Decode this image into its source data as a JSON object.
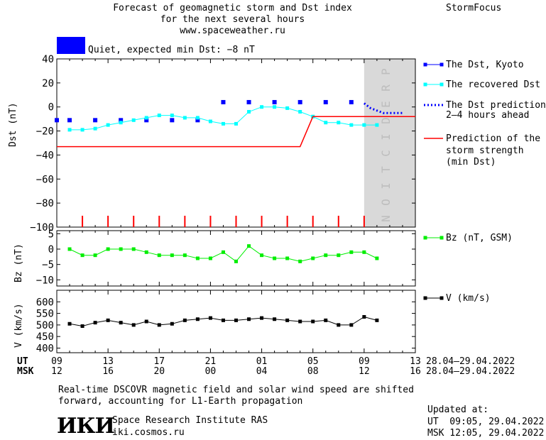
{
  "header": {
    "title_line1": "Forecast of geomagnetic storm and Dst index",
    "title_line2": "for the next several hours",
    "url": "www.spaceweather.ru",
    "brand": "StormFocus",
    "status_text": "Quiet, expected min Dst: −8 nT",
    "status_color": "#0000ff"
  },
  "legend": {
    "dst_kyoto": "The Dst, Kyoto",
    "dst_recovered": "The recovered Dst",
    "dst_prediction_1": "The Dst prediction",
    "dst_prediction_2": "2–4 hours ahead",
    "storm_1": "Prediction of the",
    "storm_2": "storm strength",
    "storm_3": "(min Dst)",
    "bz": "Bz (nT, GSM)",
    "v": "V (km/s)"
  },
  "axis": {
    "ut_label": "UT",
    "msk_label": "MSK",
    "ut_ticks": [
      "09",
      "13",
      "17",
      "21",
      "01",
      "05",
      "09",
      "13"
    ],
    "msk_ticks": [
      "12",
      "16",
      "20",
      "00",
      "04",
      "08",
      "12",
      "16"
    ],
    "ut_range": "28.04–29.04.2022",
    "msk_range": "28.04–29.04.2022"
  },
  "footer": {
    "note_line1": "Real-time DSCOVR magnetic field and solar wind speed are shifted",
    "note_line2": "forward, accounting for L1-Earth propagation",
    "logo_text": "ИКИ",
    "institute": "Space Research Institute RAS",
    "site": "iki.cosmos.ru",
    "updated_label": "Updated at:",
    "updated_ut": "UT  09:05, 29.04.2022",
    "updated_msk": "MSK 12:05, 29.04.2022"
  },
  "colors": {
    "kyoto": "#0000ff",
    "recovered": "#00ffff",
    "prediction": "#0000ff",
    "storm": "#ff0000",
    "bz": "#00ee00",
    "v": "#000000",
    "prediction_band": "#d9d9d9"
  },
  "chart_data": [
    {
      "type": "line",
      "ylabel": "Dst (nT)",
      "ylim": [
        -100,
        40
      ],
      "yticks": [
        40,
        20,
        0,
        -20,
        -40,
        -60,
        -80,
        -100
      ],
      "xlim": [
        0,
        28
      ],
      "prediction_band": [
        24,
        28
      ],
      "prediction_label": "PREDICTION",
      "series": [
        {
          "name": "The Dst, Kyoto",
          "style": "squares",
          "x": [
            0,
            1,
            3,
            5,
            7,
            9,
            11,
            13,
            15,
            17,
            19,
            21,
            23
          ],
          "y": [
            -11,
            -11,
            -11,
            -11,
            -11,
            -11,
            -11,
            4,
            4,
            4,
            4,
            4,
            4
          ]
        },
        {
          "name": "The recovered Dst",
          "style": "line-markers",
          "x": [
            1,
            2,
            3,
            4,
            5,
            6,
            7,
            8,
            9,
            10,
            11,
            12,
            13,
            14,
            15,
            16,
            17,
            18,
            19,
            20,
            21,
            22,
            23,
            24,
            25
          ],
          "y": [
            -19,
            -19,
            -18,
            -15,
            -13,
            -11,
            -9,
            -7,
            -7,
            -9,
            -9,
            -12,
            -14,
            -14,
            -4,
            0,
            0,
            -1,
            -4,
            -8,
            -13,
            -13,
            -15,
            -15,
            -15
          ]
        },
        {
          "name": "The Dst prediction 2-4 hours ahead",
          "style": "dotted",
          "x": [
            24,
            24.5,
            25,
            25.5,
            26,
            26.5,
            27
          ],
          "y": [
            3,
            -1,
            -3,
            -5,
            -5,
            -5,
            -5
          ]
        },
        {
          "name": "Prediction of the storm strength (min Dst)",
          "style": "step",
          "x": [
            0,
            19,
            20,
            28
          ],
          "y": [
            -33,
            -33,
            -8,
            -8
          ]
        }
      ],
      "markers": {
        "x": [
          2,
          4,
          6,
          8,
          10,
          12,
          14,
          16,
          18,
          20,
          22,
          24
        ]
      }
    },
    {
      "type": "line",
      "ylabel": "Bz (nT)",
      "ylim": [
        -12,
        6
      ],
      "yticks": [
        5,
        0,
        -5,
        -10
      ],
      "series": [
        {
          "name": "Bz (nT, GSM)",
          "x": [
            1,
            2,
            3,
            4,
            5,
            6,
            7,
            8,
            9,
            10,
            11,
            12,
            13,
            14,
            15,
            16,
            17,
            18,
            19,
            20,
            21,
            22,
            23,
            24,
            25
          ],
          "y": [
            0,
            -2,
            -2,
            0,
            0,
            0,
            -1,
            -2,
            -2,
            -2,
            -3,
            -3,
            -1,
            -4,
            1,
            -2,
            -3,
            -3,
            -4,
            -3,
            -2,
            -2,
            -1,
            -1,
            -3
          ]
        }
      ]
    },
    {
      "type": "line",
      "ylabel": "V (km/s)",
      "ylim": [
        380,
        650
      ],
      "yticks": [
        600,
        550,
        500,
        450,
        400
      ],
      "series": [
        {
          "name": "V (km/s)",
          "x": [
            1,
            2,
            3,
            4,
            5,
            6,
            7,
            8,
            9,
            10,
            11,
            12,
            13,
            14,
            15,
            16,
            17,
            18,
            19,
            20,
            21,
            22,
            23,
            24,
            25
          ],
          "y": [
            505,
            495,
            510,
            520,
            510,
            500,
            515,
            500,
            505,
            520,
            525,
            530,
            520,
            520,
            525,
            530,
            525,
            520,
            515,
            515,
            520,
            500,
            500,
            535,
            520
          ]
        }
      ]
    }
  ]
}
